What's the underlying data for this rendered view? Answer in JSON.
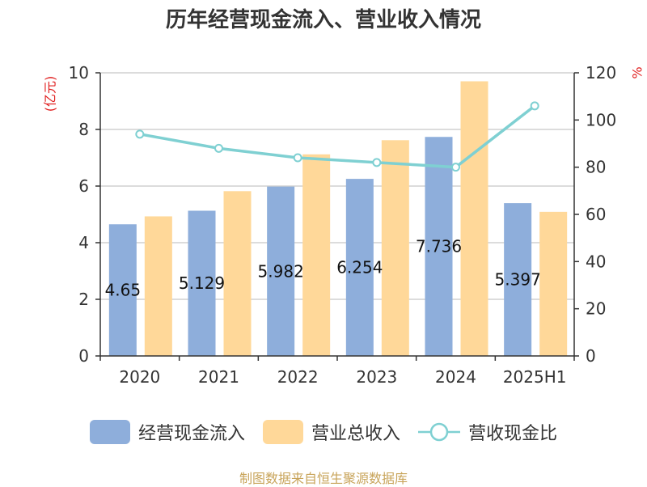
{
  "title": "历年经营现金流入、营业收入情况",
  "source_note": "制图数据来自恒生聚源数据库",
  "colors": {
    "cash_inflow": "#8eaedb",
    "revenue": "#ffd899",
    "ratio_line": "#7fd0d2",
    "unit_text": "#e02020",
    "source_text": "#c8a45a"
  },
  "legend": [
    {
      "label": "经营现金流入",
      "color": "#8eaedb",
      "kind": "bar"
    },
    {
      "label": "营业总收入",
      "color": "#ffd899",
      "kind": "bar"
    },
    {
      "label": "营收现金比",
      "color": "#7fd0d2",
      "kind": "line"
    }
  ],
  "chart_data": {
    "type": "bar",
    "title": "历年经营现金流入、营业收入情况",
    "categories": [
      "2020",
      "2021",
      "2022",
      "2023",
      "2024",
      "2025H1"
    ],
    "y_left": {
      "unit": "(亿元)",
      "ylim": [
        0,
        10
      ],
      "ticks": [
        "0",
        "2",
        "4",
        "6",
        "8",
        "10"
      ]
    },
    "y_right": {
      "unit": "%",
      "ylim": [
        0,
        120
      ],
      "ticks": [
        "0",
        "20",
        "40",
        "60",
        "80",
        "100",
        "120"
      ]
    },
    "grid": true,
    "legend_position": "bottom",
    "series": [
      {
        "name": "经营现金流入",
        "type": "bar",
        "axis": "left",
        "values": [
          4.65,
          5.129,
          5.982,
          6.254,
          7.736,
          5.397
        ],
        "labels": [
          "4.65",
          "5.129",
          "5.982",
          "6.254",
          "7.736",
          "5.397"
        ]
      },
      {
        "name": "营业总收入",
        "type": "bar",
        "axis": "left",
        "values": [
          4.93,
          5.82,
          7.12,
          7.62,
          9.7,
          5.09
        ]
      },
      {
        "name": "营收现金比",
        "type": "line",
        "axis": "right",
        "values": [
          94,
          88,
          84,
          82,
          80,
          106
        ]
      }
    ]
  }
}
